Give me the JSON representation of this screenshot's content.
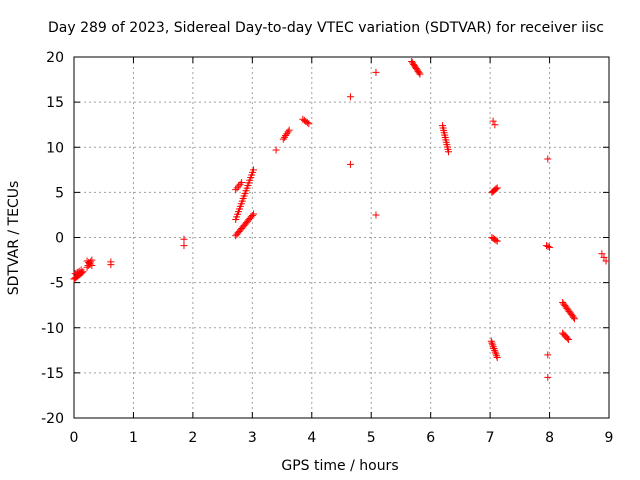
{
  "chart_data": {
    "type": "scatter",
    "title": "Day 289 of 2023, Sidereal Day-to-day VTEC variation (SDTVAR) for receiver iisc",
    "xlabel": "GPS time / hours",
    "ylabel": "SDTVAR / TECUs",
    "xlim": [
      0,
      9
    ],
    "ylim": [
      -20,
      20
    ],
    "x_ticks": [
      0,
      1,
      2,
      3,
      4,
      5,
      6,
      7,
      8,
      9
    ],
    "x_tick_labels": [
      "0",
      "1",
      "2",
      "3",
      "4",
      "5",
      "6",
      "7",
      "8",
      "9"
    ],
    "y_ticks": [
      -20,
      -15,
      -10,
      -5,
      0,
      5,
      10,
      15,
      20
    ],
    "y_tick_labels": [
      "-20",
      "-15",
      "-10",
      "-5",
      "0",
      "5",
      "10",
      "15",
      "20"
    ],
    "grid": true,
    "marker": "+",
    "series": [
      {
        "name": "SDTVAR",
        "color": "#ff0000",
        "segments": [
          {
            "x0": 0.0,
            "y0": -4.6,
            "x1": 0.15,
            "y1": -3.8,
            "n": 10
          },
          {
            "x0": 0.02,
            "y0": -4.0,
            "x1": 0.12,
            "y1": -3.6,
            "n": 4
          },
          {
            "x0": 0.22,
            "y0": -3.3,
            "x1": 0.3,
            "y1": -2.5,
            "n": 5
          },
          {
            "x0": 0.22,
            "y0": -2.6,
            "x1": 0.3,
            "y1": -3.1,
            "n": 4
          },
          {
            "x0": 0.62,
            "y0": -2.7,
            "x1": 0.62,
            "y1": -3.0,
            "n": 2
          },
          {
            "x0": 1.85,
            "y0": -0.2,
            "x1": 1.85,
            "y1": -0.9,
            "n": 2
          },
          {
            "x0": 2.72,
            "y0": 0.2,
            "x1": 3.02,
            "y1": 2.6,
            "n": 16
          },
          {
            "x0": 2.72,
            "y0": 2.0,
            "x1": 3.02,
            "y1": 7.5,
            "n": 20
          },
          {
            "x0": 2.72,
            "y0": 5.3,
            "x1": 2.82,
            "y1": 6.1,
            "n": 5
          },
          {
            "x0": 3.4,
            "y0": 9.7,
            "x1": 3.4,
            "y1": 9.7,
            "n": 1
          },
          {
            "x0": 3.52,
            "y0": 10.9,
            "x1": 3.62,
            "y1": 11.9,
            "n": 6
          },
          {
            "x0": 3.85,
            "y0": 13.1,
            "x1": 3.95,
            "y1": 12.6,
            "n": 5
          },
          {
            "x0": 4.65,
            "y0": 15.6,
            "x1": 4.65,
            "y1": 15.6,
            "n": 1
          },
          {
            "x0": 4.65,
            "y0": 8.1,
            "x1": 4.65,
            "y1": 8.1,
            "n": 1
          },
          {
            "x0": 5.08,
            "y0": 18.3,
            "x1": 5.08,
            "y1": 18.3,
            "n": 1
          },
          {
            "x0": 5.08,
            "y0": 2.5,
            "x1": 5.08,
            "y1": 2.5,
            "n": 1
          },
          {
            "x0": 5.68,
            "y0": 19.5,
            "x1": 5.82,
            "y1": 18.1,
            "n": 10
          },
          {
            "x0": 6.2,
            "y0": 12.4,
            "x1": 6.3,
            "y1": 9.5,
            "n": 12
          },
          {
            "x0": 7.05,
            "y0": 12.9,
            "x1": 7.08,
            "y1": 12.5,
            "n": 2
          },
          {
            "x0": 7.03,
            "y0": 5.0,
            "x1": 7.12,
            "y1": 5.5,
            "n": 6
          },
          {
            "x0": 7.03,
            "y0": 0.0,
            "x1": 7.12,
            "y1": -0.4,
            "n": 5
          },
          {
            "x0": 7.02,
            "y0": -11.5,
            "x1": 7.12,
            "y1": -13.3,
            "n": 10
          },
          {
            "x0": 7.97,
            "y0": 8.7,
            "x1": 7.97,
            "y1": 8.7,
            "n": 1
          },
          {
            "x0": 7.95,
            "y0": -0.9,
            "x1": 8.0,
            "y1": -1.1,
            "n": 3
          },
          {
            "x0": 7.97,
            "y0": -13.0,
            "x1": 7.97,
            "y1": -13.0,
            "n": 1
          },
          {
            "x0": 7.97,
            "y0": -15.5,
            "x1": 7.97,
            "y1": -15.5,
            "n": 1
          },
          {
            "x0": 8.22,
            "y0": -7.2,
            "x1": 8.42,
            "y1": -9.0,
            "n": 12
          },
          {
            "x0": 8.22,
            "y0": -10.6,
            "x1": 8.32,
            "y1": -11.3,
            "n": 6
          },
          {
            "x0": 8.88,
            "y0": -1.8,
            "x1": 8.95,
            "y1": -2.6,
            "n": 3
          }
        ]
      }
    ]
  }
}
